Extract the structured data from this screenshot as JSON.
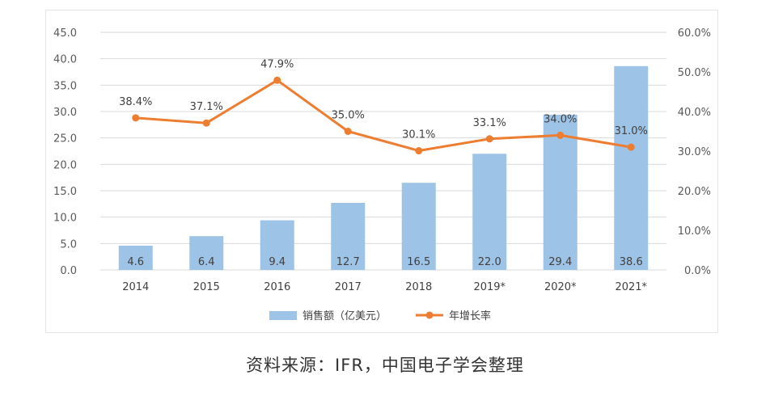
{
  "caption": "资料来源：IFR，中国电子学会整理",
  "chart_data": {
    "type": "bar+line",
    "categories": [
      "2014",
      "2015",
      "2016",
      "2017",
      "2018",
      "2019*",
      "2020*",
      "2021*"
    ],
    "series": [
      {
        "name": "销售额（亿美元）",
        "type": "bar",
        "axis": "left",
        "values": [
          4.6,
          6.4,
          9.4,
          12.7,
          16.5,
          22.0,
          29.4,
          38.6
        ],
        "labels": [
          "4.6",
          "6.4",
          "9.4",
          "12.7",
          "16.5",
          "22.0",
          "29.4",
          "38.6"
        ],
        "color": "#9dc3e6"
      },
      {
        "name": "年增长率",
        "type": "line",
        "axis": "right",
        "values": [
          38.4,
          37.1,
          47.9,
          35.0,
          30.1,
          33.1,
          34.0,
          31.0
        ],
        "labels": [
          "38.4%",
          "37.1%",
          "47.9%",
          "35.0%",
          "30.1%",
          "33.1%",
          "34.0%",
          "31.0%"
        ],
        "color": "#ed7d31"
      }
    ],
    "left_axis": {
      "ylim": [
        0,
        45
      ],
      "ticks": [
        "0.0",
        "5.0",
        "10.0",
        "15.0",
        "20.0",
        "25.0",
        "30.0",
        "35.0",
        "40.0",
        "45.0"
      ]
    },
    "right_axis": {
      "ylim": [
        0,
        60
      ],
      "ticks": [
        "0.0%",
        "10.0%",
        "20.0%",
        "30.0%",
        "40.0%",
        "50.0%",
        "60.0%"
      ]
    },
    "grid": true,
    "legend_position": "bottom"
  }
}
